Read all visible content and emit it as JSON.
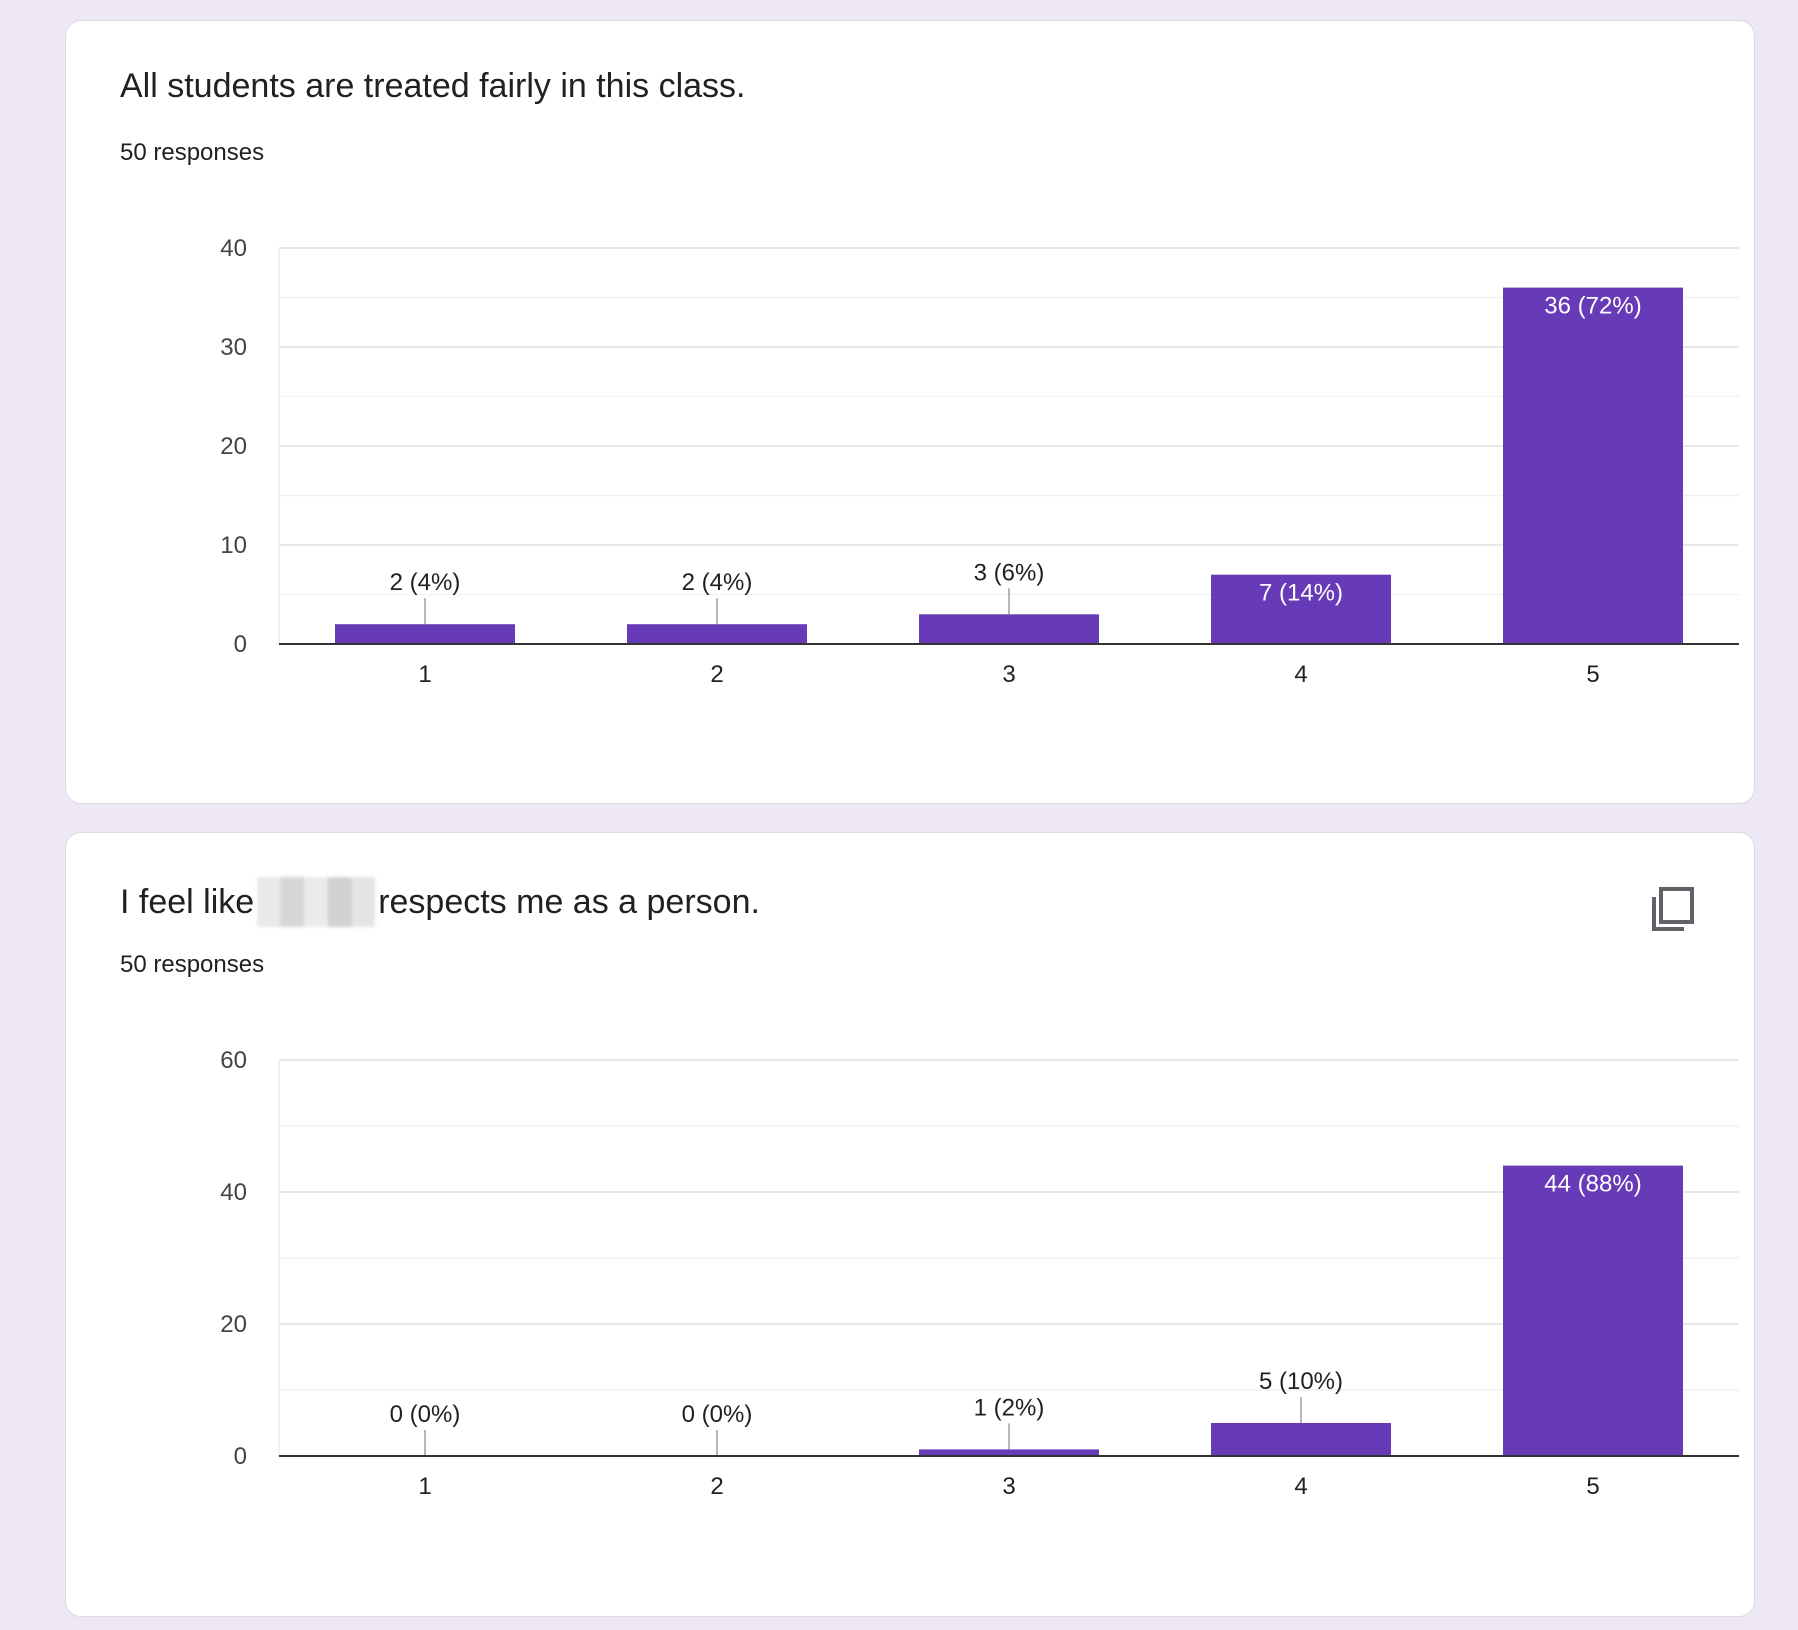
{
  "colors": {
    "bar": "#673ab7",
    "page_bg": "#ede7f6",
    "card_bg": "#ffffff",
    "text": "#202124"
  },
  "questions": [
    {
      "title": "All students are treated fairly in this class.",
      "responses": "50 responses"
    },
    {
      "title_before": "I feel like",
      "title_after": "respects me as a person.",
      "responses": "50 responses",
      "copy_icon": "copy-icon"
    }
  ],
  "chart_data": [
    {
      "type": "bar",
      "categories": [
        "1",
        "2",
        "3",
        "4",
        "5"
      ],
      "values": [
        2,
        2,
        3,
        7,
        36
      ],
      "data_labels": [
        "2 (4%)",
        "2 (4%)",
        "3 (6%)",
        "7 (14%)",
        "36 (72%)"
      ],
      "yticks": [
        0,
        10,
        20,
        30,
        40
      ],
      "ylim": [
        0,
        40
      ],
      "grid": true
    },
    {
      "type": "bar",
      "categories": [
        "1",
        "2",
        "3",
        "4",
        "5"
      ],
      "values": [
        0,
        0,
        1,
        5,
        44
      ],
      "data_labels": [
        "0 (0%)",
        "0 (0%)",
        "1 (2%)",
        "5 (10%)",
        "44 (88%)"
      ],
      "yticks": [
        0,
        20,
        40,
        60
      ],
      "ylim": [
        0,
        60
      ],
      "grid": true
    }
  ]
}
